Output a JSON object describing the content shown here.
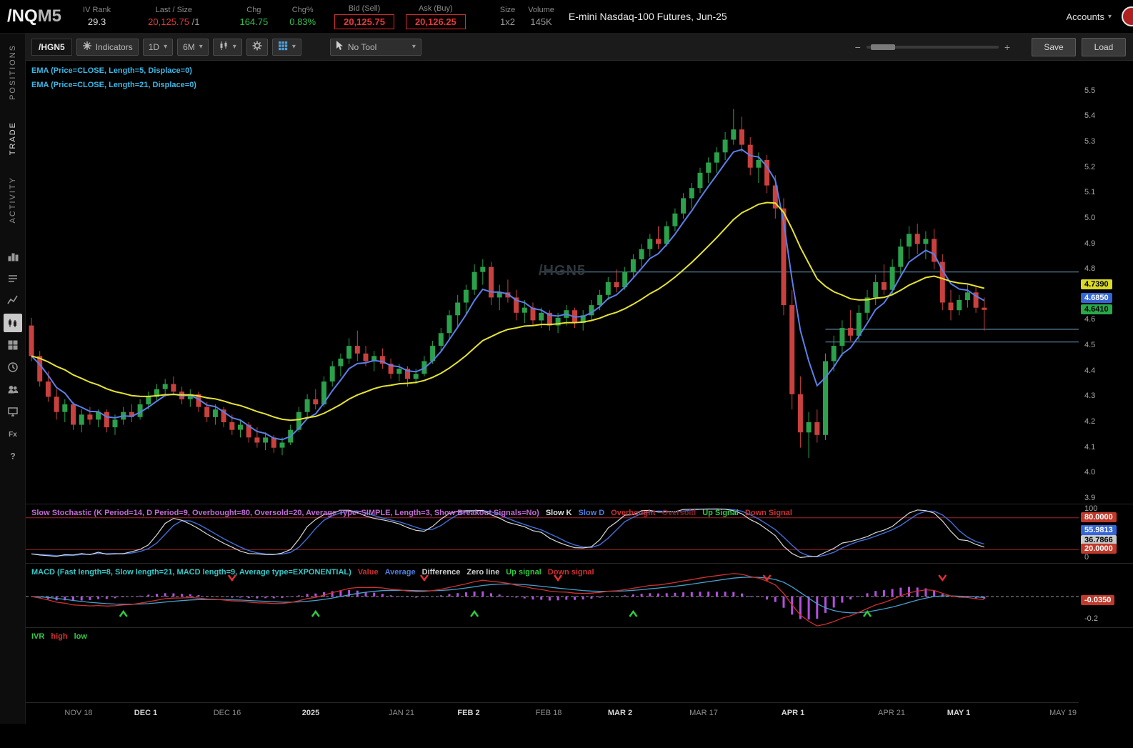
{
  "header": {
    "symbol": "/NQ",
    "symbol_suffix": "M5",
    "iv_rank": {
      "label": "IV Rank",
      "value": "29.3"
    },
    "last": {
      "label": "Last / Size",
      "value": "20,125.75",
      "size": "/1"
    },
    "chg": {
      "label": "Chg",
      "value": "164.75"
    },
    "chg_pct": {
      "label": "Chg%",
      "value": "0.83%"
    },
    "bid": {
      "label": "Bid (Sell)",
      "value": "20,125.75"
    },
    "ask": {
      "label": "Ask (Buy)",
      "value": "20,126.25"
    },
    "size": {
      "label": "Size",
      "value": "1x2"
    },
    "volume": {
      "label": "Volume",
      "value": "145K"
    },
    "description": "E-mini Nasdaq-100 Futures, Jun-25",
    "accounts_label": "Accounts"
  },
  "sidebar": {
    "tabs": [
      {
        "label": "POSITIONS",
        "active": false
      },
      {
        "label": "TRADE",
        "active": true
      },
      {
        "label": "ACTIVITY",
        "active": false
      }
    ],
    "icons": [
      "scan",
      "watchlist",
      "alerts",
      "charts",
      "grid",
      "history",
      "community",
      "screen",
      "forex",
      "help"
    ],
    "active_icon": "charts"
  },
  "toolbar": {
    "symbol": "/HGN5",
    "indicators_label": "Indicators",
    "timeframe": "1D",
    "range": "6M",
    "tool_label": "No Tool",
    "save_label": "Save",
    "load_label": "Load",
    "zoom_minus": "−",
    "zoom_plus": "+"
  },
  "chart": {
    "studies": [
      "EMA (Price=CLOSE, Length=5, Displace=0)",
      "EMA (Price=CLOSE, Length=21, Displace=0)"
    ],
    "watermark": "/HGN5"
  },
  "panes": {
    "stoch_legend": [
      {
        "text": "Slow Stochastic (K Period=14, D Period=9, Overbought=80, Oversold=20, Average Type=SIMPLE, Length=3, Show Breakout Signals=No)",
        "color": "#c36ad4"
      },
      {
        "text": "Slow K",
        "color": "#e0e0e0"
      },
      {
        "text": "Slow D",
        "color": "#4d7fe0"
      },
      {
        "text": "Overbought",
        "color": "#d03030"
      },
      {
        "text": "Oversold",
        "color": "#8a2020"
      },
      {
        "text": "Up Signal",
        "color": "#2ecc40"
      },
      {
        "text": "Down Signal",
        "color": "#d03030"
      }
    ],
    "macd_legend": [
      {
        "text": "MACD (Fast length=8, Slow length=21, MACD length=9, Average type=EXPONENTIAL)",
        "color": "#35c8c8"
      },
      {
        "text": "Value",
        "color": "#d03030"
      },
      {
        "text": "Average",
        "color": "#4d7fe0"
      },
      {
        "text": "Difference",
        "color": "#cfcfcf"
      },
      {
        "text": "Zero line",
        "color": "#cfcfcf"
      },
      {
        "text": "Up signal",
        "color": "#2ecc40"
      },
      {
        "text": "Down signal",
        "color": "#d03030"
      }
    ],
    "ivr_legend": [
      {
        "text": "IVR",
        "color": "#2ecc40"
      },
      {
        "text": "high",
        "color": "#d03030"
      },
      {
        "text": "low",
        "color": "#2ecc40"
      }
    ]
  },
  "chart_data": {
    "type": "candlestick",
    "symbol": "/HGN5",
    "price_range": [
      3.88,
      5.62
    ],
    "price_ticks": [
      "5.5",
      "5.4",
      "5.3",
      "5.2",
      "5.1",
      "5.0",
      "4.9",
      "4.8",
      "4.6",
      "4.5",
      "4.4",
      "4.3",
      "4.2",
      "4.1",
      "4.0",
      "3.9"
    ],
    "price_badges": [
      {
        "value": "4.7390",
        "bg": "#d9d926",
        "fg": "#000000"
      },
      {
        "value": "4.6850",
        "bg": "#3566d6",
        "fg": "#ffffff"
      },
      {
        "value": "4.6410",
        "bg": "#2ba84a",
        "fg": "#000000"
      }
    ],
    "levels": [
      {
        "price": 4.79,
        "from": 61
      },
      {
        "price": 4.565,
        "from": 95
      },
      {
        "price": 4.515,
        "from": 95
      }
    ],
    "candles": [
      [
        4.58,
        4.61,
        4.44,
        4.46
      ],
      [
        4.46,
        4.48,
        4.34,
        4.36
      ],
      [
        4.36,
        4.4,
        4.28,
        4.3
      ],
      [
        4.3,
        4.33,
        4.21,
        4.24
      ],
      [
        4.24,
        4.29,
        4.2,
        4.27
      ],
      [
        4.27,
        4.28,
        4.17,
        4.19
      ],
      [
        4.19,
        4.25,
        4.16,
        4.23
      ],
      [
        4.23,
        4.26,
        4.19,
        4.21
      ],
      [
        4.21,
        4.25,
        4.18,
        4.24
      ],
      [
        4.24,
        4.25,
        4.16,
        4.18
      ],
      [
        4.18,
        4.23,
        4.15,
        4.21
      ],
      [
        4.21,
        4.26,
        4.19,
        4.24
      ],
      [
        4.24,
        4.27,
        4.2,
        4.22
      ],
      [
        4.22,
        4.29,
        4.21,
        4.27
      ],
      [
        4.27,
        4.32,
        4.25,
        4.3
      ],
      [
        4.3,
        4.35,
        4.28,
        4.33
      ],
      [
        4.33,
        4.37,
        4.3,
        4.35
      ],
      [
        4.35,
        4.38,
        4.31,
        4.32
      ],
      [
        4.32,
        4.34,
        4.27,
        4.29
      ],
      [
        4.29,
        4.33,
        4.26,
        4.31
      ],
      [
        4.31,
        4.32,
        4.24,
        4.26
      ],
      [
        4.26,
        4.28,
        4.2,
        4.22
      ],
      [
        4.22,
        4.27,
        4.19,
        4.25
      ],
      [
        4.25,
        4.26,
        4.18,
        4.2
      ],
      [
        4.2,
        4.23,
        4.15,
        4.17
      ],
      [
        4.17,
        4.21,
        4.14,
        4.19
      ],
      [
        4.19,
        4.2,
        4.12,
        4.14
      ],
      [
        4.14,
        4.18,
        4.1,
        4.12
      ],
      [
        4.12,
        4.16,
        4.09,
        4.14
      ],
      [
        4.14,
        4.15,
        4.08,
        4.1
      ],
      [
        4.1,
        4.14,
        4.07,
        4.12
      ],
      [
        4.12,
        4.19,
        4.11,
        4.17
      ],
      [
        4.17,
        4.26,
        4.16,
        4.24
      ],
      [
        4.24,
        4.31,
        4.22,
        4.29
      ],
      [
        4.29,
        4.33,
        4.25,
        4.27
      ],
      [
        4.27,
        4.38,
        4.26,
        4.36
      ],
      [
        4.36,
        4.44,
        4.34,
        4.42
      ],
      [
        4.42,
        4.47,
        4.38,
        4.45
      ],
      [
        4.45,
        4.53,
        4.43,
        4.5
      ],
      [
        4.5,
        4.56,
        4.44,
        4.47
      ],
      [
        4.47,
        4.5,
        4.42,
        4.44
      ],
      [
        4.44,
        4.48,
        4.4,
        4.46
      ],
      [
        4.46,
        4.49,
        4.41,
        4.43
      ],
      [
        4.43,
        4.45,
        4.37,
        4.39
      ],
      [
        4.39,
        4.43,
        4.36,
        4.41
      ],
      [
        4.41,
        4.42,
        4.34,
        4.37
      ],
      [
        4.37,
        4.41,
        4.35,
        4.39
      ],
      [
        4.39,
        4.46,
        4.38,
        4.44
      ],
      [
        4.44,
        4.52,
        4.43,
        4.5
      ],
      [
        4.5,
        4.57,
        4.48,
        4.55
      ],
      [
        4.55,
        4.64,
        4.53,
        4.62
      ],
      [
        4.62,
        4.7,
        4.57,
        4.67
      ],
      [
        4.67,
        4.74,
        4.62,
        4.72
      ],
      [
        4.72,
        4.82,
        4.7,
        4.79
      ],
      [
        4.79,
        4.84,
        4.74,
        4.81
      ],
      [
        4.81,
        4.83,
        4.66,
        4.69
      ],
      [
        4.69,
        4.74,
        4.64,
        4.71
      ],
      [
        4.71,
        4.76,
        4.67,
        4.69
      ],
      [
        4.69,
        4.72,
        4.6,
        4.63
      ],
      [
        4.63,
        4.68,
        4.59,
        4.65
      ],
      [
        4.65,
        4.67,
        4.58,
        4.6
      ],
      [
        4.6,
        4.65,
        4.57,
        4.63
      ],
      [
        4.63,
        4.64,
        4.56,
        4.58
      ],
      [
        4.58,
        4.63,
        4.55,
        4.61
      ],
      [
        4.61,
        4.66,
        4.58,
        4.64
      ],
      [
        4.64,
        4.65,
        4.57,
        4.59
      ],
      [
        4.59,
        4.64,
        4.56,
        4.62
      ],
      [
        4.62,
        4.68,
        4.6,
        4.66
      ],
      [
        4.66,
        4.72,
        4.64,
        4.7
      ],
      [
        4.7,
        4.77,
        4.68,
        4.75
      ],
      [
        4.75,
        4.8,
        4.71,
        4.73
      ],
      [
        4.73,
        4.81,
        4.72,
        4.79
      ],
      [
        4.79,
        4.86,
        4.77,
        4.84
      ],
      [
        4.84,
        4.9,
        4.81,
        4.88
      ],
      [
        4.88,
        4.94,
        4.85,
        4.92
      ],
      [
        4.92,
        4.97,
        4.88,
        4.9
      ],
      [
        4.9,
        4.99,
        4.89,
        4.97
      ],
      [
        4.97,
        5.04,
        4.95,
        5.02
      ],
      [
        5.02,
        5.1,
        5.0,
        5.08
      ],
      [
        5.08,
        5.14,
        5.04,
        5.12
      ],
      [
        5.12,
        5.2,
        5.1,
        5.18
      ],
      [
        5.18,
        5.24,
        5.14,
        5.22
      ],
      [
        5.22,
        5.28,
        5.18,
        5.26
      ],
      [
        5.26,
        5.34,
        5.23,
        5.31
      ],
      [
        5.31,
        5.43,
        5.29,
        5.35
      ],
      [
        5.35,
        5.4,
        5.26,
        5.29
      ],
      [
        5.29,
        5.32,
        5.17,
        5.2
      ],
      [
        5.2,
        5.26,
        5.14,
        5.23
      ],
      [
        5.23,
        5.25,
        5.1,
        5.13
      ],
      [
        5.13,
        5.17,
        5.0,
        5.04
      ],
      [
        5.04,
        5.08,
        4.62,
        4.66
      ],
      [
        4.66,
        4.72,
        4.25,
        4.31
      ],
      [
        4.31,
        4.38,
        4.1,
        4.16
      ],
      [
        4.16,
        4.24,
        4.06,
        4.2
      ],
      [
        4.2,
        4.25,
        4.12,
        4.15
      ],
      [
        4.15,
        4.47,
        4.13,
        4.44
      ],
      [
        4.44,
        4.54,
        4.4,
        4.5
      ],
      [
        4.5,
        4.6,
        4.46,
        4.57
      ],
      [
        4.57,
        4.64,
        4.52,
        4.54
      ],
      [
        4.54,
        4.66,
        4.52,
        4.63
      ],
      [
        4.63,
        4.72,
        4.6,
        4.69
      ],
      [
        4.69,
        4.78,
        4.66,
        4.75
      ],
      [
        4.75,
        4.82,
        4.7,
        4.72
      ],
      [
        4.72,
        4.84,
        4.7,
        4.81
      ],
      [
        4.81,
        4.92,
        4.78,
        4.89
      ],
      [
        4.89,
        4.97,
        4.84,
        4.94
      ],
      [
        4.94,
        4.98,
        4.86,
        4.9
      ],
      [
        4.9,
        4.95,
        4.84,
        4.92
      ],
      [
        4.92,
        4.96,
        4.8,
        4.83
      ],
      [
        4.83,
        4.86,
        4.64,
        4.67
      ],
      [
        4.67,
        4.72,
        4.6,
        4.64
      ],
      [
        4.64,
        4.7,
        4.62,
        4.68
      ],
      [
        4.68,
        4.74,
        4.65,
        4.71
      ],
      [
        4.71,
        4.73,
        4.63,
        4.65
      ],
      [
        4.65,
        4.69,
        4.56,
        4.641
      ]
    ],
    "ema_lengths": [
      5,
      21
    ],
    "stoch_ticks": [
      {
        "label": "100",
        "v": 100
      },
      {
        "label": "0",
        "v": 0
      }
    ],
    "stoch_badges": [
      {
        "value": "80.0000",
        "bg": "#c0392b",
        "fg": "#ffffff"
      },
      {
        "value": "55.9813",
        "bg": "#3566d6",
        "fg": "#ffffff"
      },
      {
        "value": "36.7866",
        "bg": "#c9c9c9",
        "fg": "#000000"
      },
      {
        "value": "20.0000",
        "bg": "#c0392b",
        "fg": "#ffffff"
      }
    ],
    "macd_ticks": [
      {
        "label": "-0.2",
        "v": -0.2
      }
    ],
    "macd_badges": [
      {
        "value": "-0.0350",
        "bg": "#c0392b",
        "fg": "#ffffff"
      }
    ],
    "macd_up_signals": [
      11,
      34,
      53,
      72,
      100
    ],
    "macd_down_signals": [
      24,
      47,
      63,
      88,
      109
    ],
    "time_axis": [
      {
        "label": "NOV 18",
        "d": 5.6,
        "bold": false
      },
      {
        "label": "DEC 1",
        "d": 13.7,
        "bold": true
      },
      {
        "label": "DEC 16",
        "d": 23.4,
        "bold": false
      },
      {
        "label": "2025",
        "d": 33.4,
        "bold": true
      },
      {
        "label": "JAN 21",
        "d": 44.3,
        "bold": false
      },
      {
        "label": "FEB 2",
        "d": 52.3,
        "bold": true
      },
      {
        "label": "FEB 18",
        "d": 61.9,
        "bold": false
      },
      {
        "label": "MAR 2",
        "d": 70.4,
        "bold": true
      },
      {
        "label": "MAR 17",
        "d": 80.4,
        "bold": false
      },
      {
        "label": "APR 1",
        "d": 91.1,
        "bold": true
      },
      {
        "label": "APR 21",
        "d": 102.9,
        "bold": false
      },
      {
        "label": "MAY 1",
        "d": 110.9,
        "bold": true
      },
      {
        "label": "MAY 19",
        "d": 123.4,
        "bold": false
      }
    ],
    "colors": {
      "up": "#2aa14a",
      "down": "#c9413e",
      "ema5": "#5b7fe8",
      "ema21": "#e6e330",
      "level": "#5b87a3",
      "slowk": "#d8d8d8",
      "slowd": "#3f6fd9",
      "ob": "#a02525",
      "val": "#d03030",
      "avg": "#44a0cc",
      "hist": "#b44fe0",
      "up_sig": "#2ecc40",
      "down_sig": "#e03030",
      "study_label": "#3bb8e8"
    }
  }
}
